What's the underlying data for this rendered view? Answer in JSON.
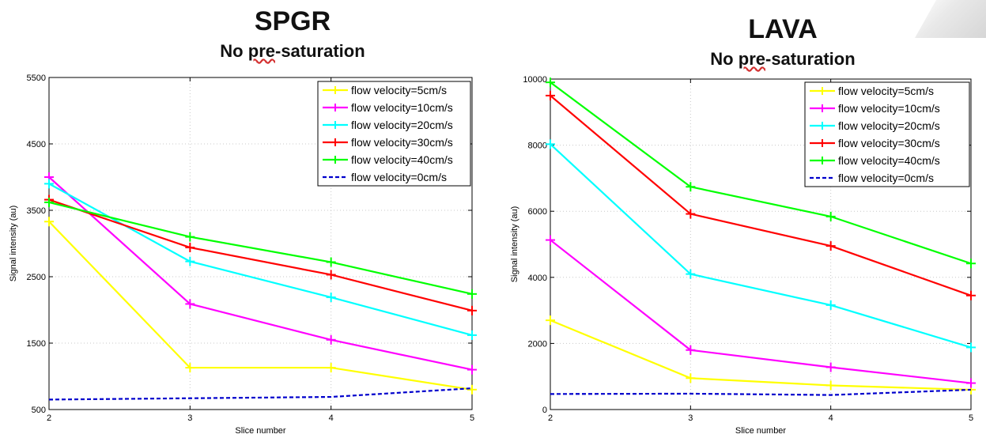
{
  "charts": [
    {
      "title": "SPGR",
      "subtitle_pre": "No ",
      "subtitle_ul": "pre",
      "subtitle_post": "-saturation"
    },
    {
      "title": "LAVA",
      "subtitle_pre": "No ",
      "subtitle_ul": "pre",
      "subtitle_post": "-saturation"
    }
  ],
  "chart_data": [
    {
      "type": "line",
      "title": "SPGR",
      "subtitle": "No pre-saturation",
      "xlabel": "Slice number",
      "ylabel": "Signal intensity (au)",
      "x": [
        2,
        3,
        4,
        5
      ],
      "xlim": [
        2,
        5
      ],
      "ylim": [
        500,
        5500
      ],
      "xticks": [
        2,
        3,
        4,
        5
      ],
      "yticks": [
        500,
        1500,
        2500,
        3500,
        4500,
        5500
      ],
      "grid": true,
      "legend_position": "top-right",
      "series": [
        {
          "name": "flow velocity=5cm/s",
          "color": "#ffff00",
          "marker": "+",
          "dashed": false,
          "values": [
            3330,
            1130,
            1130,
            800
          ]
        },
        {
          "name": "flow velocity=10cm/s",
          "color": "#ff00ff",
          "marker": "+",
          "dashed": false,
          "values": [
            4000,
            2090,
            1550,
            1100
          ]
        },
        {
          "name": "flow velocity=20cm/s",
          "color": "#00ffff",
          "marker": "+",
          "dashed": false,
          "values": [
            3900,
            2730,
            2190,
            1620
          ]
        },
        {
          "name": "flow velocity=30cm/s",
          "color": "#ff0000",
          "marker": "+",
          "dashed": false,
          "values": [
            3660,
            2940,
            2530,
            1990
          ]
        },
        {
          "name": "flow velocity=40cm/s",
          "color": "#00ff00",
          "marker": "+",
          "dashed": false,
          "values": [
            3620,
            3100,
            2720,
            2240
          ]
        },
        {
          "name": "flow velocity=0cm/s",
          "color": "#0000cc",
          "marker": "",
          "dashed": true,
          "values": [
            650,
            670,
            690,
            820
          ]
        }
      ]
    },
    {
      "type": "line",
      "title": "LAVA",
      "subtitle": "No pre-saturation",
      "xlabel": "Slice number",
      "ylabel": "Signal intensity (au)",
      "x": [
        2,
        3,
        4,
        5
      ],
      "xlim": [
        2,
        5
      ],
      "ylim": [
        0,
        10000
      ],
      "xticks": [
        2,
        3,
        4,
        5
      ],
      "yticks": [
        0,
        2000,
        4000,
        6000,
        8000,
        10000
      ],
      "grid": true,
      "legend_position": "top-right",
      "series": [
        {
          "name": "flow velocity=5cm/s",
          "color": "#ffff00",
          "marker": "+",
          "dashed": false,
          "values": [
            2700,
            950,
            730,
            600
          ]
        },
        {
          "name": "flow velocity=10cm/s",
          "color": "#ff00ff",
          "marker": "+",
          "dashed": false,
          "values": [
            5130,
            1800,
            1280,
            800
          ]
        },
        {
          "name": "flow velocity=20cm/s",
          "color": "#00ffff",
          "marker": "+",
          "dashed": false,
          "values": [
            8030,
            4100,
            3160,
            1880
          ]
        },
        {
          "name": "flow velocity=30cm/s",
          "color": "#ff0000",
          "marker": "+",
          "dashed": false,
          "values": [
            9500,
            5920,
            4950,
            3450
          ]
        },
        {
          "name": "flow velocity=40cm/s",
          "color": "#00ff00",
          "marker": "+",
          "dashed": false,
          "values": [
            9900,
            6740,
            5840,
            4420
          ]
        },
        {
          "name": "flow velocity=0cm/s",
          "color": "#0000cc",
          "marker": "",
          "dashed": true,
          "values": [
            470,
            480,
            440,
            600
          ]
        }
      ]
    }
  ]
}
